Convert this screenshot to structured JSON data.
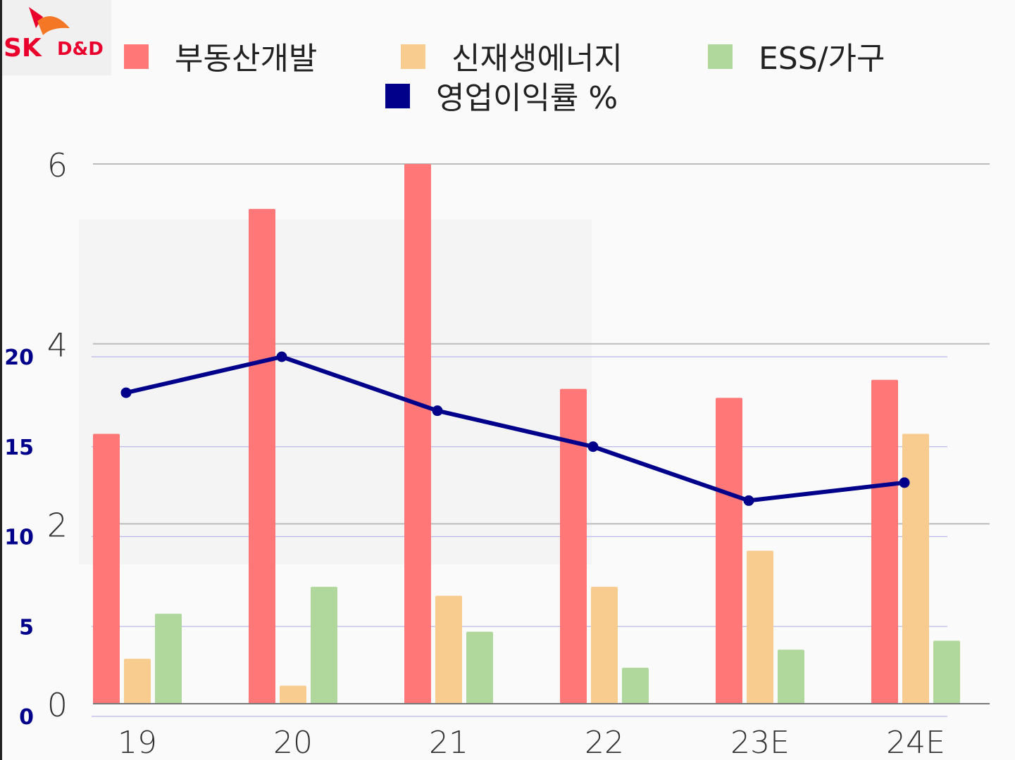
{
  "logo": {
    "brand": "SK",
    "suffix": "D&D",
    "color": "#ea002c",
    "accent": "#f47725"
  },
  "chart_data": {
    "type": "bar",
    "title": "",
    "categories": [
      "19",
      "20",
      "21",
      "22",
      "23E",
      "24E"
    ],
    "series": [
      {
        "name": "부동산개발",
        "color": "#ff7777",
        "values": [
          3.0,
          5.5,
          6.0,
          3.5,
          3.4,
          3.6
        ]
      },
      {
        "name": "신재생에너지",
        "color": "#f8cb8e",
        "values": [
          0.5,
          0.2,
          1.2,
          1.3,
          1.7,
          3.0
        ]
      },
      {
        "name": "ESS/가구",
        "color": "#b0d89c",
        "values": [
          1.0,
          1.3,
          0.8,
          0.4,
          0.6,
          0.7
        ]
      }
    ],
    "line_series": {
      "name": "영업이익률 %",
      "color": "#00008b",
      "axis": "secondary",
      "values": [
        18,
        20,
        17,
        15,
        12,
        13
      ]
    },
    "ylim": [
      0,
      6
    ],
    "yticks": [
      "0",
      "2",
      "4",
      "6"
    ],
    "y2lim": [
      0,
      20
    ],
    "y2ticks": [
      "0",
      "5",
      "10",
      "15",
      "20"
    ],
    "y2_color": "#00008b",
    "legend_position": "top",
    "grid": true
  }
}
